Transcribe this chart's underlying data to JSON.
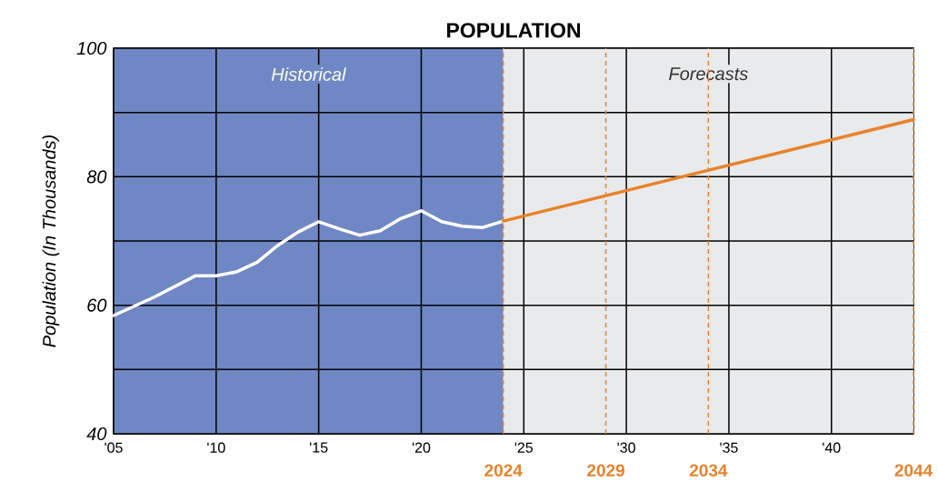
{
  "chart_data": {
    "type": "line",
    "title": "POPULATION",
    "ylabel": "Population (In Thousands)",
    "x": [
      2005,
      2007,
      2009,
      2010,
      2011,
      2012,
      2013,
      2014,
      2015,
      2016,
      2017,
      2018,
      2019,
      2020,
      2021,
      2022,
      2023,
      2024
    ],
    "series": [
      {
        "color": "#ffffff",
        "values": [
          58.4,
          61.3,
          64.6,
          64.6,
          65.2,
          66.7,
          69.3,
          71.4,
          73.0,
          71.9,
          70.9,
          71.6,
          73.5,
          74.7,
          73.0,
          72.3,
          72.1,
          73.1
        ]
      },
      {
        "color": "#e8822a",
        "x": [
          2024,
          2044
        ],
        "values": [
          73.1,
          88.9
        ]
      }
    ],
    "xlim": [
      2005,
      2044
    ],
    "ylim": [
      40,
      100
    ],
    "xticks": [
      {
        "value": 2005,
        "label": "'05"
      },
      {
        "value": 2010,
        "label": "'10"
      },
      {
        "value": 2015,
        "label": "'15"
      },
      {
        "value": 2020,
        "label": "'20"
      },
      {
        "value": 2025,
        "label": "'25"
      },
      {
        "value": 2030,
        "label": "'30"
      },
      {
        "value": 2035,
        "label": "'35"
      },
      {
        "value": 2040,
        "label": "'40"
      }
    ],
    "yticks": [
      40,
      {
        "value": 50,
        "label": null
      },
      60,
      {
        "value": 70,
        "label": null
      },
      80,
      {
        "value": 90,
        "label": null
      },
      100
    ],
    "bands": [
      {
        "axis": "x",
        "from": 2005,
        "to": 2024,
        "label": "Historical",
        "color": "#6f87c4"
      },
      {
        "axis": "x",
        "from": 2024,
        "to": 2044,
        "label": "Forecasts",
        "color": "#e9eaeb"
      }
    ],
    "ref_lines": [
      {
        "axis": "x",
        "value": 2024,
        "label": "2024",
        "color": "#e8822a",
        "line_style": "dashed"
      },
      {
        "axis": "x",
        "value": 2029,
        "label": "2029",
        "color": "#e8822a",
        "line_style": "dashed"
      },
      {
        "axis": "x",
        "value": 2034,
        "label": "2034",
        "color": "#e8822a",
        "line_style": "dashed"
      },
      {
        "axis": "x",
        "value": 2044,
        "label": "2044",
        "color": "#e8822a",
        "line_style": "dashed"
      }
    ],
    "grid": true,
    "marker": "none",
    "line_style": "solid"
  }
}
